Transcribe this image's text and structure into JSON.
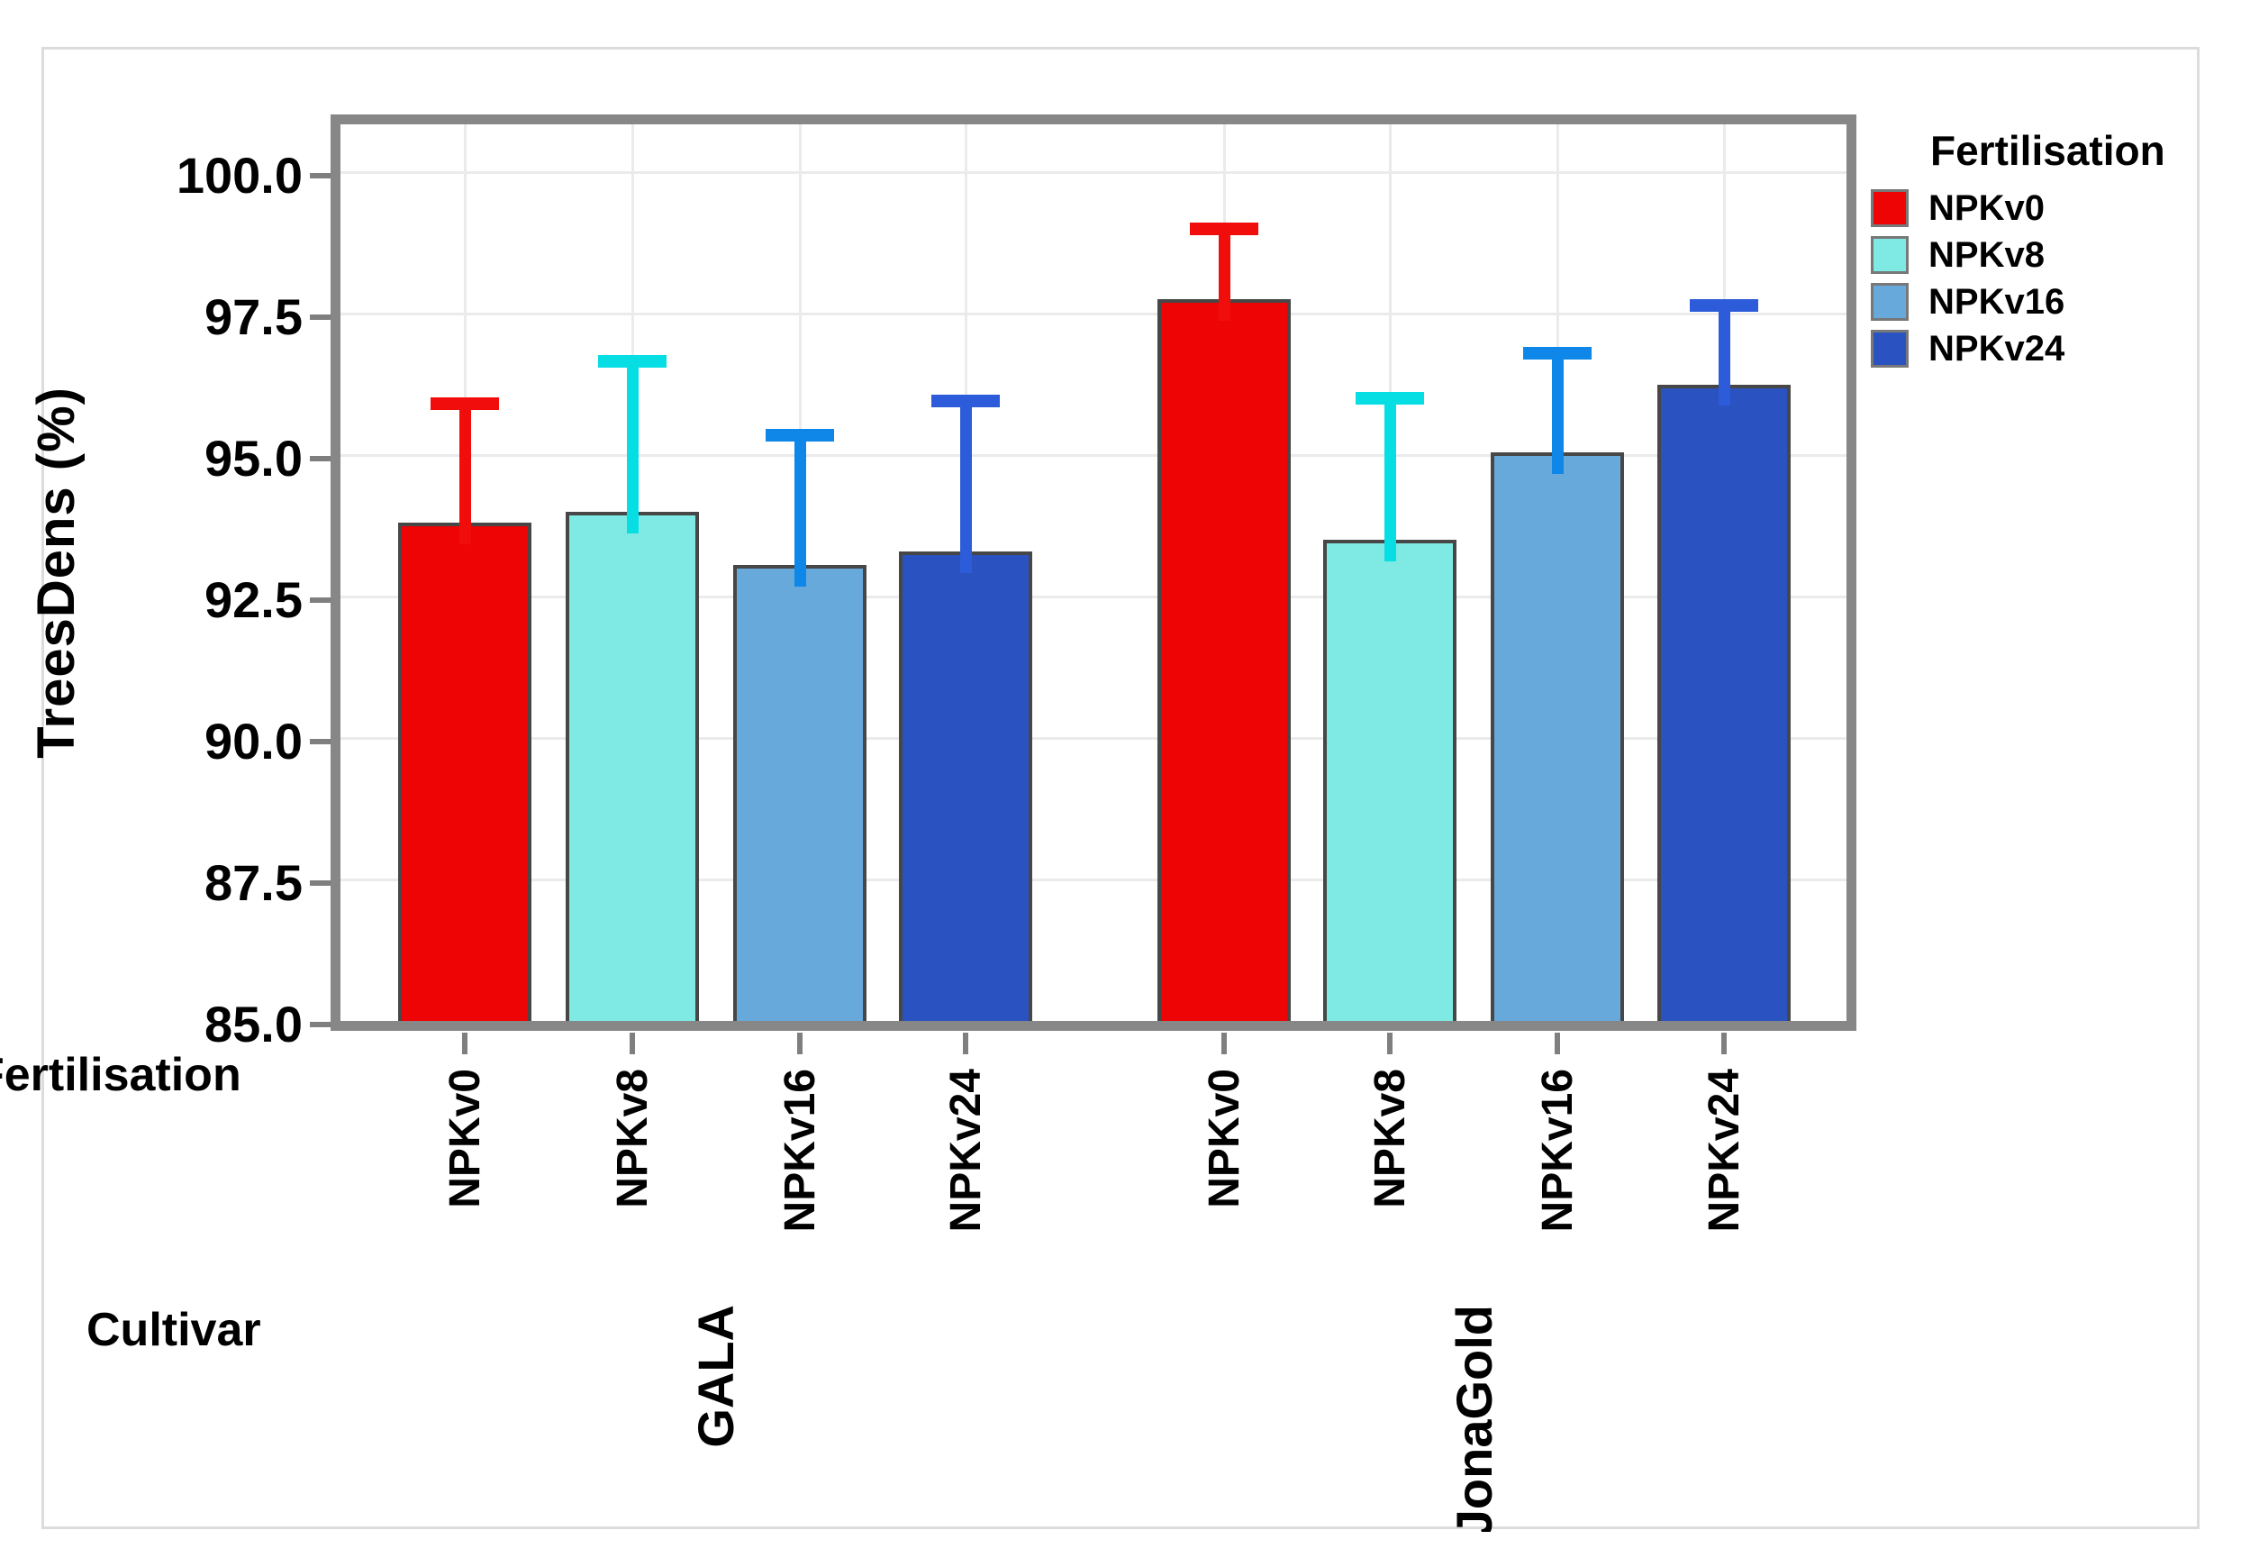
{
  "chart_data": {
    "type": "bar",
    "title": "",
    "ylabel": "TreesDens (%)",
    "xlabel_rows": {
      "fertilisation": "Fertilisation",
      "cultivar": "Cultivar"
    },
    "y_ticks": [
      "85.0",
      "87.5",
      "90.0",
      "92.5",
      "95.0",
      "97.5",
      "100.0"
    ],
    "ylim": [
      85.0,
      101.2
    ],
    "grid": "on",
    "legend_position": "right",
    "legend": {
      "title": "Fertilisation",
      "items": [
        {
          "label": "NPKv0",
          "color": "#ee0404",
          "error_color": "#f20d0d"
        },
        {
          "label": "NPKv8",
          "color": "#7feae3",
          "error_color": "#06dee4"
        },
        {
          "label": "NPKv16",
          "color": "#68a9dc",
          "error_color": "#0e87e8"
        },
        {
          "label": "NPKv24",
          "color": "#2a53c1",
          "error_color": "#2c5cd9"
        }
      ]
    },
    "groups": [
      {
        "cultivar": "GALA",
        "bars": [
          {
            "fertilisation": "NPKv0",
            "value": 93.8,
            "error_top": 95.9
          },
          {
            "fertilisation": "NPKv8",
            "value": 94.0,
            "error_top": 96.65
          },
          {
            "fertilisation": "NPKv16",
            "value": 93.05,
            "error_top": 95.35
          },
          {
            "fertilisation": "NPKv24",
            "value": 93.3,
            "error_top": 95.95
          }
        ]
      },
      {
        "cultivar": "JonaGold",
        "bars": [
          {
            "fertilisation": "NPKv0",
            "value": 97.75,
            "error_top": 99.0
          },
          {
            "fertilisation": "NPKv8",
            "value": 93.5,
            "error_top": 96.0
          },
          {
            "fertilisation": "NPKv16",
            "value": 95.05,
            "error_top": 96.8
          },
          {
            "fertilisation": "NPKv24",
            "value": 96.25,
            "error_top": 97.65
          }
        ]
      }
    ]
  }
}
